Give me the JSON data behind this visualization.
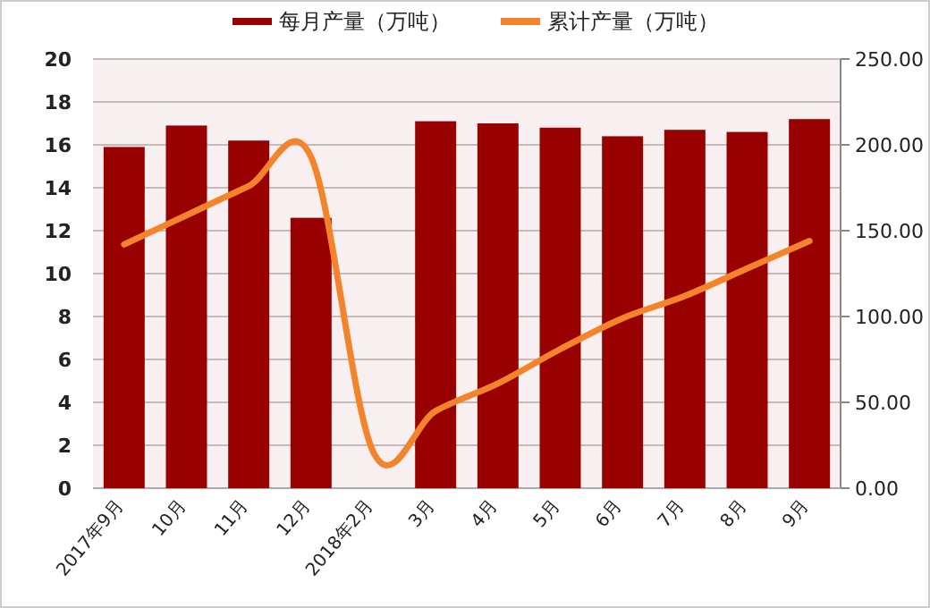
{
  "chart_data": {
    "type": "bar",
    "categories": [
      "2017年9月",
      "10月",
      "11月",
      "12月",
      "2018年2月",
      "3月",
      "4月",
      "5月",
      "6月",
      "7月",
      "8月",
      "9月"
    ],
    "series": [
      {
        "name": "每月产量（万吨）",
        "color": "#990000",
        "values": [
          15.9,
          16.9,
          16.2,
          12.6,
          null,
          17.1,
          17.0,
          16.8,
          16.4,
          16.7,
          16.6,
          17.2
        ]
      },
      {
        "name": "累计产量（万吨）",
        "type": "line",
        "axis": "y2",
        "color": "#f4842c",
        "values": [
          142,
          159,
          176,
          193,
          21,
          45,
          61,
          81,
          99,
          112,
          128,
          144
        ]
      }
    ],
    "ylim": [
      0,
      20
    ],
    "yticks": [
      0,
      2,
      4,
      6,
      8,
      10,
      12,
      14,
      16,
      18,
      20
    ],
    "y2lim": [
      0,
      250
    ],
    "y2ticks": [
      {
        "value": 0,
        "label": "0.00"
      },
      {
        "value": 50,
        "label": "50.00"
      },
      {
        "value": 100,
        "label": "100.00"
      },
      {
        "value": 150,
        "label": "150.00"
      },
      {
        "value": 200,
        "label": "200.00"
      },
      {
        "value": 250,
        "label": "250.00"
      }
    ],
    "grid": "y",
    "legend": "top",
    "marker": "none",
    "line_style": "solid"
  }
}
